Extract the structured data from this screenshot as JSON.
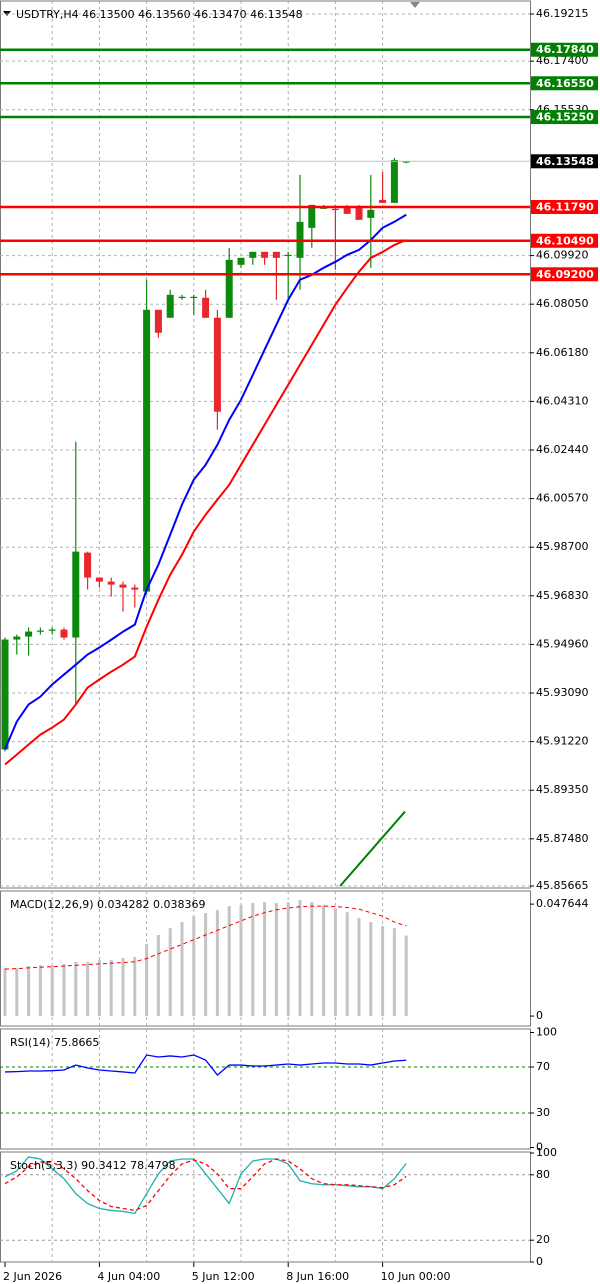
{
  "chart_data": [
    {
      "type": "candlestick",
      "title": "USDTRY,H4  46.13500 46.13560 46.13470 46.13548",
      "categories": [
        "2 Jun 2026",
        null,
        null,
        null,
        null,
        null,
        null,
        null,
        "4 Jun 04:00",
        null,
        null,
        null,
        null,
        null,
        null,
        null,
        "5 Jun 12:00",
        null,
        null,
        null,
        null,
        null,
        null,
        null,
        "8 Jun 16:00",
        null,
        null,
        null,
        null,
        null,
        null,
        null,
        "10 Jun 00:00",
        null,
        null
      ],
      "open": [
        45.90918,
        45.95147,
        45.95262,
        45.95454,
        45.95493,
        45.95531,
        45.95224,
        45.98492,
        45.97531,
        45.97377,
        45.97262,
        45.97146,
        45.96992,
        46.07834,
        46.07527,
        46.08296,
        46.08296,
        46.08296,
        46.07527,
        46.07527,
        46.09565,
        46.09834,
        46.10064,
        46.10064,
        46.09949,
        46.09834,
        46.10987,
        46.11718,
        46.11718,
        46.11794,
        46.11794,
        46.11372,
        46.12064,
        46.11948,
        46.135
      ],
      "high": [
        45.95224,
        45.95339,
        45.95608,
        45.95608,
        45.95608,
        45.95608,
        46.02759,
        45.9853,
        45.97531,
        45.97531,
        45.97377,
        45.97262,
        46.08988,
        46.07834,
        46.08603,
        46.08411,
        46.08411,
        46.08603,
        46.07834,
        46.10218,
        46.09834,
        46.10064,
        46.10064,
        46.10064,
        46.10064,
        46.13025,
        46.11871,
        46.11871,
        46.11871,
        46.11871,
        46.11871,
        46.13025,
        46.1314,
        46.13678,
        46.1356
      ],
      "low": [
        45.90841,
        45.9457,
        45.94532,
        45.95339,
        45.95339,
        45.95147,
        45.92648,
        45.97069,
        45.97146,
        45.968,
        45.96223,
        45.96377,
        45.96877,
        46.06758,
        46.07527,
        46.08219,
        46.07642,
        46.07527,
        46.03221,
        46.07527,
        46.09449,
        46.09565,
        46.09565,
        46.08219,
        46.08219,
        46.08603,
        46.10218,
        46.11718,
        46.09373,
        46.11525,
        46.11295,
        46.09449,
        46.11948,
        46.11948,
        46.1347
      ],
      "close": [
        45.95147,
        45.95262,
        45.95454,
        45.95493,
        45.95531,
        45.95224,
        45.9853,
        45.97531,
        45.97377,
        45.97262,
        45.97146,
        45.97069,
        46.07834,
        46.0695,
        46.08411,
        46.08334,
        46.08334,
        46.07527,
        46.03913,
        46.09757,
        46.09834,
        46.10064,
        46.09834,
        46.09834,
        46.09949,
        46.11218,
        46.11871,
        46.11794,
        46.11679,
        46.11525,
        46.11295,
        46.11679,
        46.11948,
        46.13601,
        46.13548
      ],
      "up_color": "#0b8a0b",
      "down_color": "#e8262b",
      "lines": [
        {
          "color": "#0000ff",
          "values": [
            45.9092,
            45.9199,
            45.9265,
            45.9295,
            45.9342,
            45.938,
            45.9418,
            45.9457,
            45.9484,
            45.9514,
            45.9545,
            45.9572,
            45.9707,
            45.9803,
            45.9918,
            46.0034,
            46.013,
            46.0187,
            46.0264,
            46.036,
            46.0437,
            46.0533,
            46.063,
            46.0726,
            46.0822,
            46.0899,
            46.0918,
            46.0945,
            46.0968,
            46.0995,
            46.1014,
            46.1052,
            46.1099,
            46.1122,
            46.1149
          ]
        },
        {
          "color": "#ff0000",
          "values": [
            45.9034,
            45.9072,
            45.9111,
            45.9149,
            45.9176,
            45.9207,
            45.9265,
            45.933,
            45.9361,
            45.9391,
            45.9418,
            45.9449,
            45.9564,
            45.9668,
            45.9764,
            45.9841,
            45.993,
            45.9995,
            46.0053,
            46.011,
            46.0187,
            46.0264,
            46.0341,
            46.0418,
            46.0495,
            46.0572,
            46.0649,
            46.0726,
            46.0803,
            46.0868,
            46.093,
            46.0983,
            46.1006,
            46.1033,
            46.1052
          ]
        }
      ],
      "trendline": {
        "color": "#008000",
        "x": [
          28.4,
          33.9
        ],
        "values": [
          45.85665,
          45.8853
        ]
      },
      "levels": [
        {
          "value": 46.1784,
          "label": "46.17840",
          "color": "#008000"
        },
        {
          "value": 46.1655,
          "label": "46.16550",
          "color": "#008000"
        },
        {
          "value": 46.1525,
          "label": "46.15250",
          "color": "#008000"
        },
        {
          "value": 46.1179,
          "label": "46.11790",
          "color": "#ff0000"
        },
        {
          "value": 46.1049,
          "label": "46.10490",
          "color": "#ff0000"
        },
        {
          "value": 46.092,
          "label": "46.09200",
          "color": "#ff0000"
        },
        {
          "value": 46.13548,
          "color": "#000000",
          "line_color": "#c0c0c0"
        }
      ],
      "ylim": [
        45.85665,
        46.19215
      ],
      "yticks": [
        46.19215,
        {
          "value": 46.174,
          "label": "46.17400"
        },
        {
          "value": 46.1553,
          "label": "46.15530"
        },
        {
          "value": 46.0992,
          "label": "46.09920"
        },
        {
          "value": 46.0805,
          "label": "46.08050"
        },
        {
          "value": 46.0618,
          "label": "46.06180"
        },
        {
          "value": 46.0431,
          "label": "46.04310"
        },
        {
          "value": 46.0244,
          "label": "46.02440"
        },
        {
          "value": 46.0057,
          "label": "46.00570"
        },
        {
          "value": 45.987,
          "label": "45.98700"
        },
        {
          "value": 45.9683,
          "label": "45.96830"
        },
        {
          "value": 45.9496,
          "label": "45.94960"
        },
        {
          "value": 45.9309,
          "label": "45.93090"
        },
        {
          "value": 45.9122,
          "label": "45.91220"
        },
        {
          "value": 45.8935,
          "label": "45.89350"
        },
        {
          "value": 45.8748,
          "label": "45.87480"
        },
        45.85665
      ],
      "grid": true
    },
    {
      "type": "macd",
      "title": "MACD(12,26,9) 0.034282 0.038369",
      "bars": {
        "color": "#c4c4c4",
        "values": [
          0.0204,
          0.0204,
          0.0213,
          0.0217,
          0.0217,
          0.0221,
          0.023,
          0.023,
          0.0238,
          0.0238,
          0.0247,
          0.0251,
          0.0306,
          0.0345,
          0.0374,
          0.04,
          0.0425,
          0.0438,
          0.0451,
          0.0468,
          0.0472,
          0.0481,
          0.0485,
          0.0481,
          0.0485,
          0.0494,
          0.0485,
          0.0472,
          0.0459,
          0.0442,
          0.0417,
          0.04,
          0.0383,
          0.0374,
          0.034282
        ]
      },
      "signal": {
        "color": "#ff0000",
        "values": [
          0.02,
          0.0202,
          0.0205,
          0.0208,
          0.021,
          0.0213,
          0.0216,
          0.0219,
          0.0222,
          0.0225,
          0.0228,
          0.0231,
          0.0245,
          0.0265,
          0.0285,
          0.0305,
          0.0325,
          0.0345,
          0.0365,
          0.0385,
          0.0405,
          0.0425,
          0.044,
          0.0452,
          0.046,
          0.0465,
          0.0468,
          0.0468,
          0.0466,
          0.0462,
          0.0455,
          0.044,
          0.0425,
          0.04,
          0.038369
        ]
      },
      "ylim": [
        -0.0038,
        0.0528
      ],
      "yticks": [
        0,
        0.047644
      ]
    },
    {
      "type": "line",
      "title": "RSI(14) 75.8665",
      "series": [
        {
          "color": "#0000ff",
          "values": [
            65.7,
            66,
            66.5,
            66.5,
            66.8,
            67.4,
            71.7,
            69.1,
            67.4,
            66.5,
            65.7,
            64.8,
            80.4,
            78.7,
            79.6,
            78.7,
            80.4,
            76.1,
            63.0,
            71.7,
            71.7,
            70.9,
            70.9,
            71.7,
            72.6,
            71.7,
            72.6,
            73.5,
            73.5,
            72.6,
            72.6,
            71.7,
            73.5,
            75.2,
            75.8665
          ]
        }
      ],
      "ylim": [
        0,
        100
      ],
      "yticks": [
        0,
        30,
        70,
        100
      ],
      "level_color": "#008000"
    },
    {
      "type": "line",
      "title": "Stoch(5,3,3) 90.3412 78.4798",
      "series": [
        {
          "color": "#20b2aa",
          "values": [
            78.2,
            83.6,
            96.4,
            94.5,
            85.5,
            76.4,
            62.7,
            53.6,
            49.1,
            47.3,
            46.4,
            44.5,
            62.7,
            80.9,
            92.7,
            94.5,
            94.5,
            80.9,
            67.3,
            53.6,
            80.9,
            92.7,
            94.5,
            94.5,
            90.0,
            74.5,
            71.8,
            70.9,
            70.9,
            70.0,
            69.1,
            69.1,
            67.3,
            76.4,
            90.3412
          ]
        },
        {
          "color": "#ff0000",
          "dashed": true,
          "values": [
            71.8,
            78.2,
            87.3,
            91.8,
            91.8,
            85.5,
            76.4,
            65.5,
            56.4,
            50.9,
            49.1,
            47.3,
            51.8,
            65.5,
            79.1,
            90,
            93.6,
            90,
            80.9,
            67.3,
            67.3,
            78.2,
            90,
            94.5,
            92.7,
            85.5,
            76.4,
            71.8,
            70.9,
            70.9,
            70.0,
            69.1,
            68.2,
            70.9,
            78.4798
          ]
        }
      ],
      "ylim": [
        0,
        100
      ],
      "yticks": [
        0,
        20,
        80,
        100
      ],
      "level_color": "#9a9a9a"
    }
  ]
}
